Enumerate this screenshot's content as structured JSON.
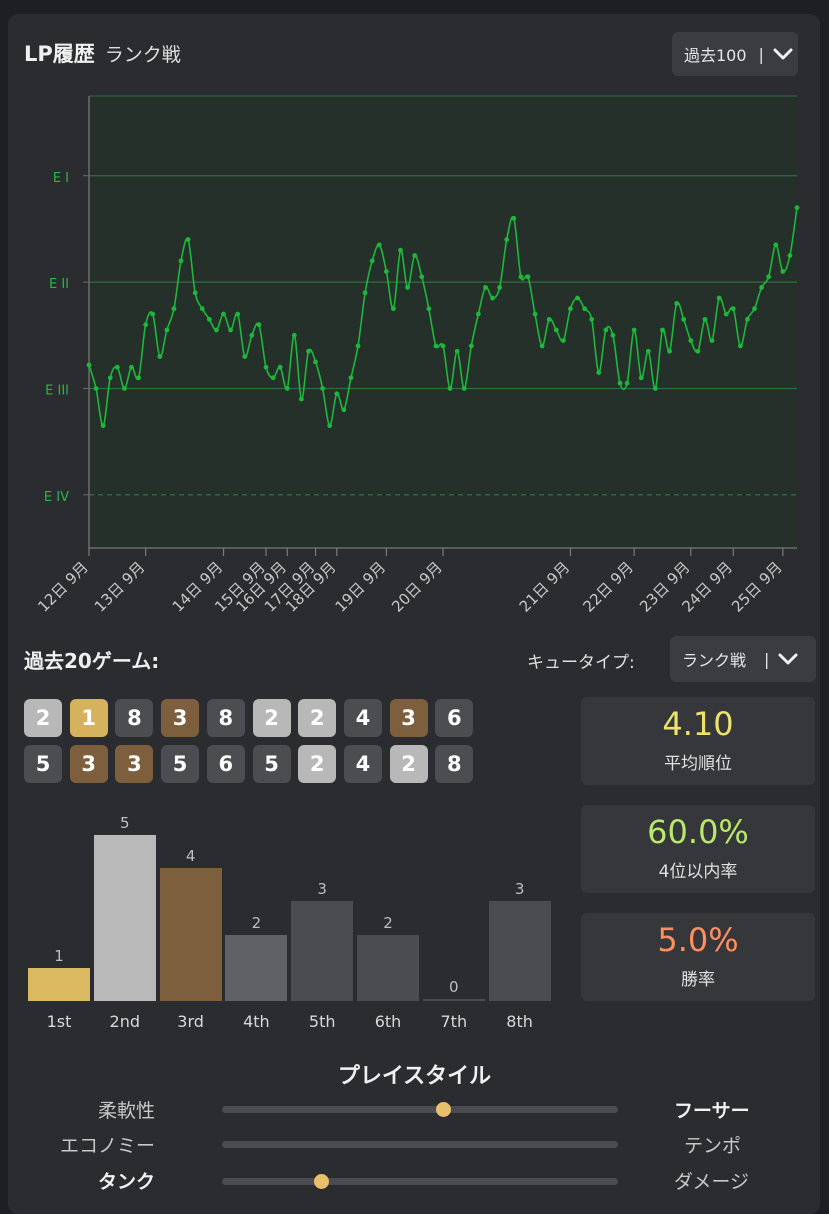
{
  "header": {
    "title": "LP履歴",
    "subtitle": "ランク戦"
  },
  "range_dropdown": {
    "value": "過去100",
    "separator": "|"
  },
  "chart_data": {
    "type": "line",
    "y_ticks": [
      "E I",
      "E II",
      "E III",
      "E IV"
    ],
    "x_ticks": [
      "12日 9月",
      "13日 9月",
      "14日 9月",
      "15日 9月",
      "16日 9月",
      "17日 9月",
      "18日 9月",
      "19日 9月",
      "20日 9月",
      "21日 9月",
      "22日 9月",
      "23日 9月",
      "24日 9月",
      "25日 9月"
    ],
    "y_min": 0.5,
    "y_max": 4.75,
    "line_color": "#1db83a",
    "values": [
      2.22,
      2.0,
      1.65,
      2.1,
      2.2,
      2.0,
      2.2,
      2.1,
      2.6,
      2.7,
      2.3,
      2.55,
      2.75,
      3.2,
      3.4,
      2.9,
      2.75,
      2.65,
      2.55,
      2.7,
      2.55,
      2.7,
      2.3,
      2.5,
      2.6,
      2.2,
      2.1,
      2.2,
      2.0,
      2.5,
      1.9,
      2.35,
      2.25,
      2.0,
      1.65,
      1.95,
      1.8,
      2.1,
      2.4,
      2.9,
      3.2,
      3.35,
      3.1,
      2.75,
      3.3,
      2.95,
      3.25,
      3.05,
      2.75,
      2.4,
      2.4,
      2.0,
      2.35,
      2.0,
      2.4,
      2.7,
      2.95,
      2.85,
      2.95,
      3.4,
      3.6,
      3.05,
      3.05,
      2.7,
      2.4,
      2.65,
      2.55,
      2.45,
      2.75,
      2.85,
      2.75,
      2.65,
      2.15,
      2.55,
      2.5,
      2.05,
      2.05,
      2.55,
      2.1,
      2.35,
      2.0,
      2.55,
      2.35,
      2.8,
      2.65,
      2.45,
      2.35,
      2.65,
      2.45,
      2.85,
      2.7,
      2.75,
      2.4,
      2.65,
      2.75,
      2.95,
      3.05,
      3.35,
      3.1,
      3.25,
      3.7
    ]
  },
  "recent": {
    "title": "過去20ゲーム:",
    "queue_label": "キュータイプ:",
    "queue_value": "ランク戦",
    "placements": [
      2,
      1,
      8,
      3,
      8,
      2,
      2,
      4,
      3,
      6,
      5,
      3,
      3,
      5,
      6,
      5,
      2,
      4,
      2,
      8
    ]
  },
  "stats": [
    {
      "value": "4.10",
      "label": "平均順位",
      "color": "#ede36a"
    },
    {
      "value": "60.0%",
      "label": "4位以内率",
      "color": "#b9e86b"
    },
    {
      "value": "5.0%",
      "label": "勝率",
      "color": "#ff8f5e"
    }
  ],
  "placement_dist": {
    "labels": [
      "1st",
      "2nd",
      "3rd",
      "4th",
      "5th",
      "6th",
      "7th",
      "8th"
    ],
    "counts": [
      1,
      5,
      4,
      2,
      3,
      2,
      0,
      3
    ],
    "colors": [
      "#dbb961",
      "#b9b9b9",
      "#7e5f3d",
      "#5f6164",
      "#4a4c50",
      "#4a4c50",
      "#4a4c50",
      "#4a4c50"
    ]
  },
  "playstyle": {
    "title": "プレイスタイル",
    "rows": [
      {
        "left": "柔軟性",
        "right": "フーサー",
        "level": 0.56,
        "bold_left": false,
        "bold_right": true
      },
      {
        "left": "エコノミー",
        "right": "テンポ",
        "level": null,
        "bold_left": false,
        "bold_right": false
      },
      {
        "left": "タンク",
        "right": "ダメージ",
        "level": 0.25,
        "bold_left": true,
        "bold_right": false
      }
    ]
  }
}
